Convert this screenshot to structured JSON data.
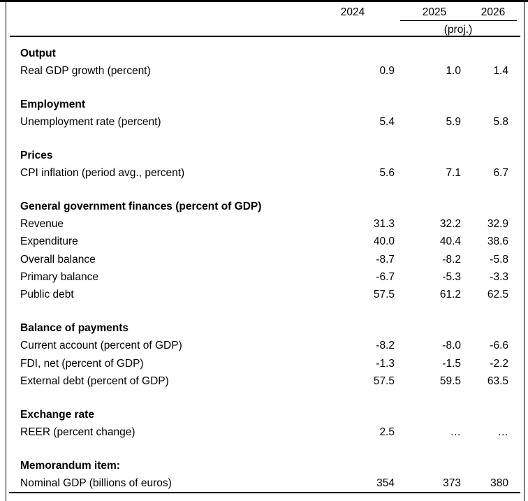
{
  "page": {
    "background_color": "#ffffff",
    "text_color": "#000000",
    "rule_color": "#000000"
  },
  "table": {
    "header": {
      "year_2024": "2024",
      "year_2025": "2025",
      "year_2026": "2026",
      "proj_label": "(proj.)"
    },
    "sections": [
      {
        "title": "Output",
        "rows": [
          {
            "label": "Real GDP growth (percent)",
            "values": [
              "0.9",
              "1.0",
              "1.4"
            ]
          }
        ]
      },
      {
        "title": "Employment",
        "rows": [
          {
            "label": "Unemployment rate (percent)",
            "values": [
              "5.4",
              "5.9",
              "5.8"
            ]
          }
        ]
      },
      {
        "title": "Prices",
        "rows": [
          {
            "label": "CPI inflation (period avg., percent)",
            "values": [
              "5.6",
              "7.1",
              "6.7"
            ]
          }
        ]
      },
      {
        "title": "General government finances (percent of GDP)",
        "rows": [
          {
            "label": "Revenue",
            "values": [
              "31.3",
              "32.2",
              "32.9"
            ]
          },
          {
            "label": "Expenditure",
            "values": [
              "40.0",
              "40.4",
              "38.6"
            ]
          },
          {
            "label": "Overall balance",
            "values": [
              "-8.7",
              "-8.2",
              "-5.8"
            ]
          },
          {
            "label": "Primary balance",
            "values": [
              "-6.7",
              "-5.3",
              "-3.3"
            ]
          },
          {
            "label": "Public debt",
            "values": [
              "57.5",
              "61.2",
              "62.5"
            ]
          }
        ]
      },
      {
        "title": "Balance of payments",
        "rows": [
          {
            "label": "Current account (percent of GDP)",
            "values": [
              "-8.2",
              "-8.0",
              "-6.6"
            ]
          },
          {
            "label": "FDI, net (percent of GDP)",
            "values": [
              "-1.3",
              "-1.5",
              "-2.2"
            ]
          },
          {
            "label": "External debt (percent of GDP)",
            "values": [
              "57.5",
              "59.5",
              "63.5"
            ]
          }
        ]
      },
      {
        "title": "Exchange rate",
        "rows": [
          {
            "label": "REER (percent change)",
            "values": [
              "2.5",
              "…",
              "…"
            ]
          }
        ]
      },
      {
        "title": "Memorandum item:",
        "rows": [
          {
            "label": "Nominal GDP (billions of euros)",
            "values": [
              "354",
              "373",
              "380"
            ]
          }
        ]
      }
    ]
  }
}
